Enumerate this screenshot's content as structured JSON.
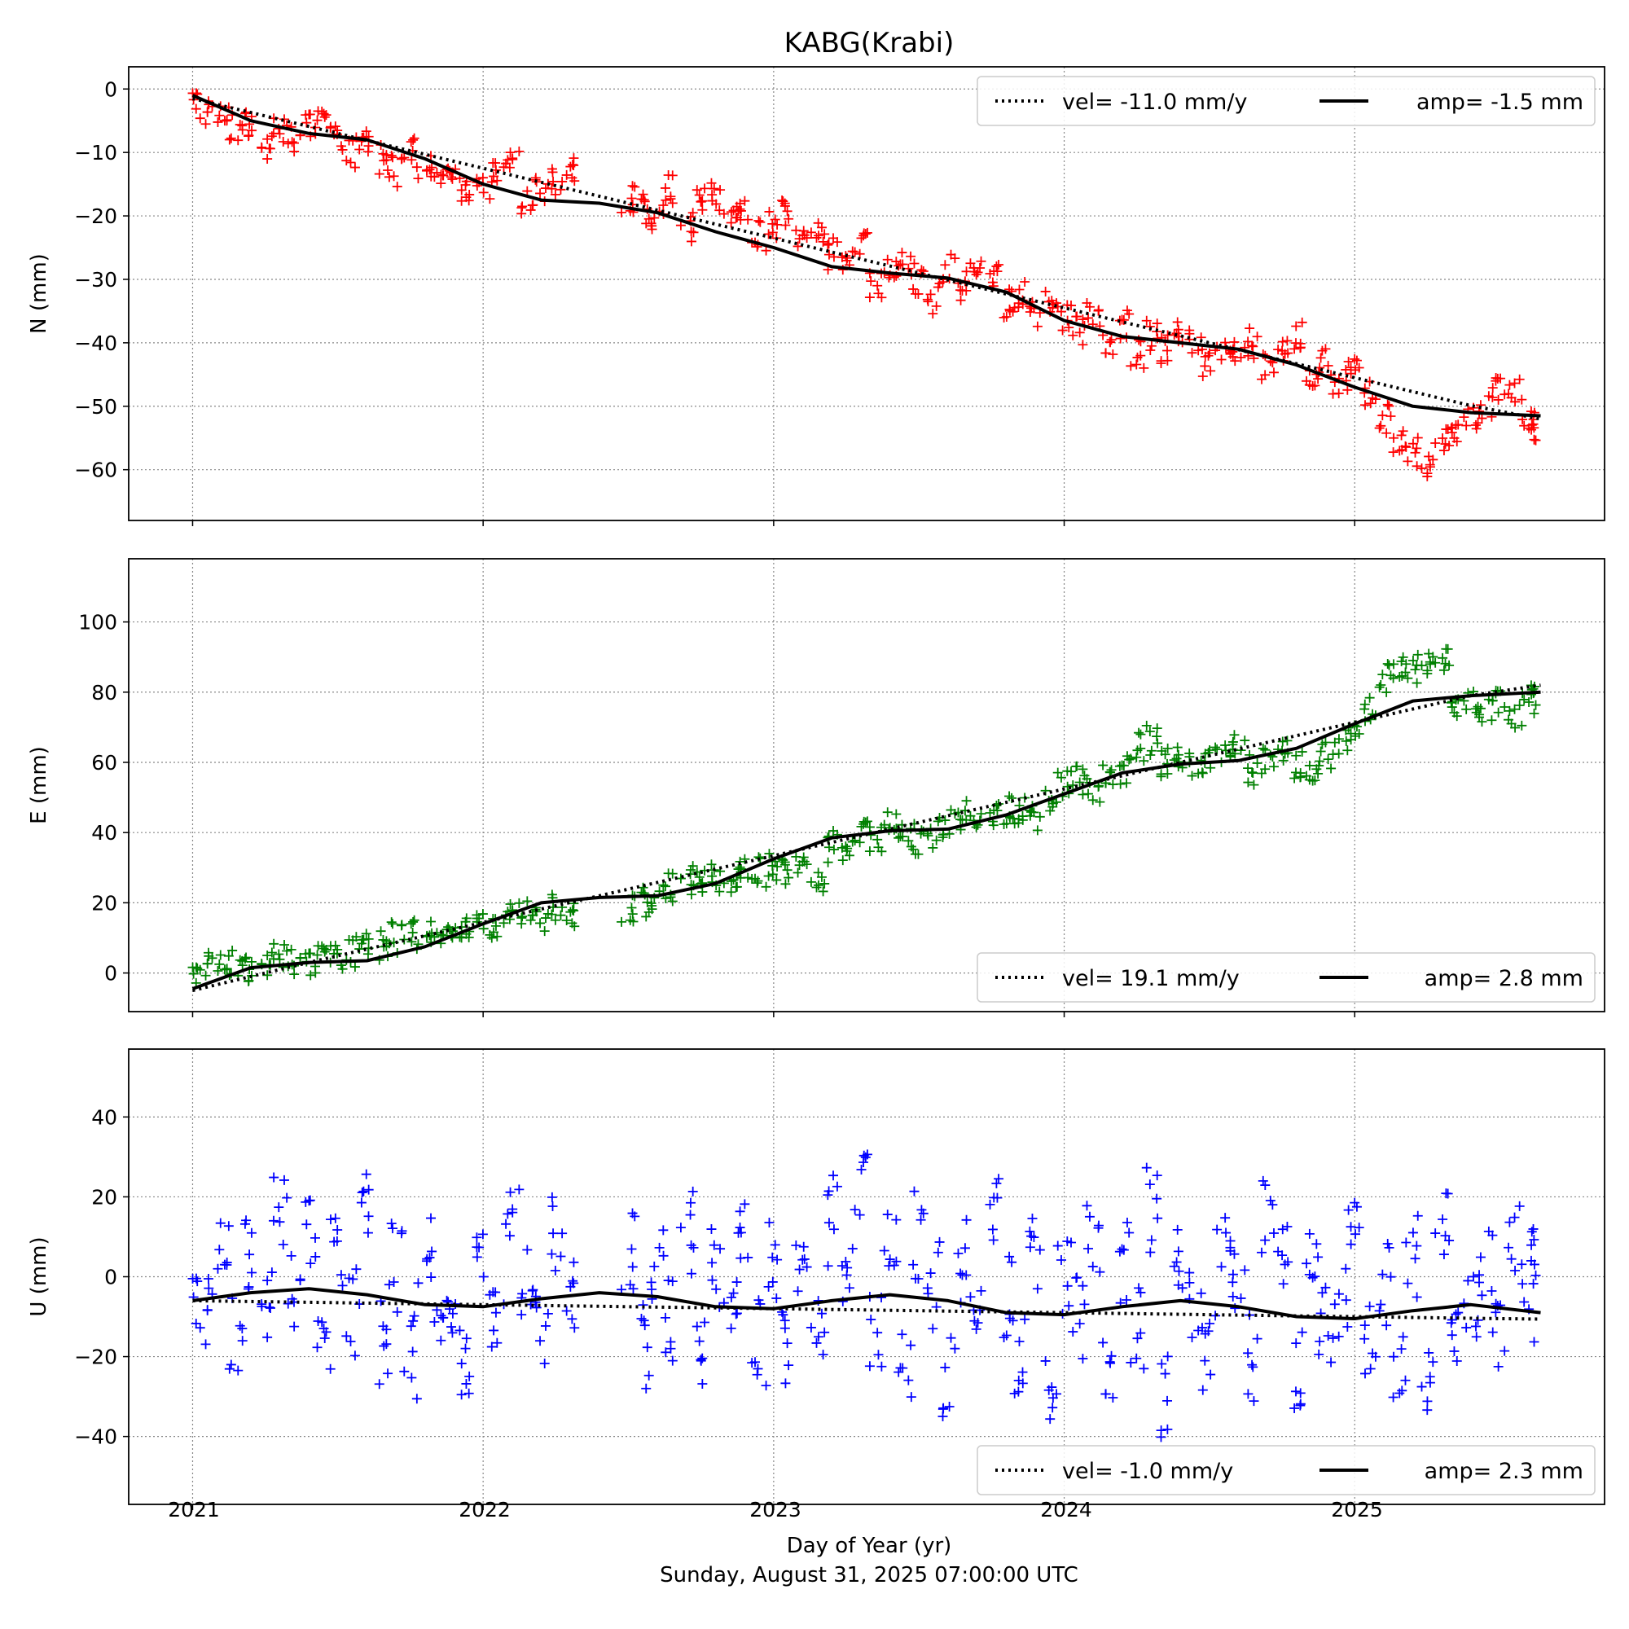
{
  "chart_data": {
    "type": "scatter",
    "title": "KABG(Krabi)",
    "xlabel": "Day of Year (yr)",
    "footer": "Sunday, August 31, 2025 07:00:00 UTC",
    "x_ticks": [
      "2021",
      "2022",
      "2023",
      "2024",
      "2025"
    ],
    "xlim": [
      2020.78,
      2025.86
    ],
    "t_start": 2021.0,
    "t_end": 2025.64,
    "grid": true,
    "panels": [
      {
        "component": "N",
        "ylabel": "N (mm)",
        "ylim": [
          -68,
          3.5
        ],
        "yticks": [
          0,
          -10,
          -20,
          -30,
          -40,
          -50,
          -60
        ],
        "ytick_labels": [
          "0",
          "−10",
          "−20",
          "−30",
          "−40",
          "−50",
          "−60"
        ],
        "marker_color": "#ff0000",
        "marker": "+",
        "velocity_mm_per_yr": -11.0,
        "annual_amplitude_mm": -1.5,
        "legend": {
          "position": "top-right",
          "vel_label": "vel= -11.0 mm/y",
          "amp_label": "amp= -1.5 mm"
        },
        "trend_line": {
          "t": [
            2021.0,
            2021.2,
            2021.4,
            2021.6,
            2021.8,
            2022.0,
            2022.2,
            2022.4,
            2022.6,
            2022.8,
            2023.0,
            2023.2,
            2023.4,
            2023.6,
            2023.8,
            2024.0,
            2024.2,
            2024.4,
            2024.6,
            2024.8,
            2025.0,
            2025.2,
            2025.4,
            2025.64
          ],
          "vel": [
            -1.5,
            -3.7,
            -5.9,
            -8.1,
            -10.3,
            -12.5,
            -14.7,
            -16.9,
            -19.1,
            -21.3,
            -23.5,
            -25.7,
            -27.9,
            -30.1,
            -32.3,
            -34.5,
            -36.7,
            -38.9,
            -41.1,
            -43.3,
            -45.5,
            -47.7,
            -49.9,
            -52.0
          ],
          "amp": [
            -1.0,
            -5.0,
            -7.0,
            -8.0,
            -11.0,
            -15.0,
            -17.5,
            -18.0,
            -19.5,
            -22.5,
            -25.0,
            -28.0,
            -29.0,
            -29.8,
            -32.0,
            -36.5,
            -39.0,
            -40.0,
            -41.0,
            -43.5,
            -47.0,
            -50.0,
            -51.0,
            -51.5
          ]
        },
        "observations": {
          "t": [
            2021.0,
            2021.05,
            2021.1,
            2021.15,
            2021.2,
            2021.25,
            2021.3,
            2021.35,
            2021.4,
            2021.45,
            2021.5,
            2021.55,
            2021.6,
            2021.65,
            2021.7,
            2021.75,
            2021.8,
            2021.85,
            2021.9,
            2021.95,
            2022.0,
            2022.05,
            2022.1,
            2022.15,
            2022.2,
            2022.25,
            2022.3,
            2022.5,
            2022.55,
            2022.6,
            2022.65,
            2022.7,
            2022.75,
            2022.8,
            2022.85,
            2022.9,
            2022.95,
            2023.0,
            2023.05,
            2023.1,
            2023.15,
            2023.2,
            2023.25,
            2023.3,
            2023.35,
            2023.4,
            2023.45,
            2023.5,
            2023.55,
            2023.6,
            2023.65,
            2023.7,
            2023.75,
            2023.8,
            2023.85,
            2023.9,
            2023.95,
            2024.0,
            2024.05,
            2024.1,
            2024.15,
            2024.2,
            2024.25,
            2024.3,
            2024.35,
            2024.4,
            2024.45,
            2024.5,
            2024.55,
            2024.6,
            2024.65,
            2024.7,
            2024.75,
            2024.8,
            2024.85,
            2024.9,
            2024.95,
            2025.0,
            2025.05,
            2025.1,
            2025.15,
            2025.2,
            2025.25,
            2025.3,
            2025.35,
            2025.4,
            2025.45,
            2025.5,
            2025.55,
            2025.6,
            2025.63
          ],
          "y": [
            -1,
            -4,
            -5,
            -6,
            -5,
            -9,
            -7,
            -8,
            -6,
            -5,
            -8,
            -10,
            -9,
            -11,
            -13,
            -10,
            -12,
            -14,
            -12,
            -16,
            -15,
            -13,
            -12,
            -18,
            -16,
            -15,
            -13,
            -17,
            -19,
            -20,
            -16,
            -22,
            -18,
            -17,
            -20,
            -19,
            -23,
            -21,
            -20,
            -24,
            -22,
            -26,
            -28,
            -25,
            -31,
            -29,
            -27,
            -30,
            -33,
            -28,
            -31,
            -29,
            -30,
            -34,
            -32,
            -35,
            -33,
            -36,
            -38,
            -35,
            -40,
            -37,
            -42,
            -39,
            -41,
            -38,
            -40,
            -43,
            -41,
            -42,
            -40,
            -44,
            -42,
            -39,
            -45,
            -43,
            -46,
            -44,
            -48,
            -52,
            -55,
            -57,
            -59,
            -56,
            -54,
            -52,
            -50,
            -48,
            -47,
            -53,
            -55
          ]
        }
      },
      {
        "component": "E",
        "ylabel": "E (mm)",
        "ylim": [
          -11,
          118
        ],
        "yticks": [
          0,
          20,
          40,
          60,
          80,
          100
        ],
        "ytick_labels": [
          "0",
          "20",
          "40",
          "60",
          "80",
          "100"
        ],
        "marker_color": "#008000",
        "marker": "+",
        "velocity_mm_per_yr": 19.1,
        "annual_amplitude_mm": 2.8,
        "legend": {
          "position": "bottom-right",
          "vel_label": "vel= 19.1 mm/y",
          "amp_label": "amp= 2.8 mm"
        },
        "trend_line": {
          "t": [
            2021.0,
            2021.2,
            2021.4,
            2021.6,
            2021.8,
            2022.0,
            2022.2,
            2022.4,
            2022.6,
            2022.8,
            2023.0,
            2023.2,
            2023.4,
            2023.6,
            2023.8,
            2024.0,
            2024.2,
            2024.4,
            2024.6,
            2024.8,
            2025.0,
            2025.2,
            2025.4,
            2025.64
          ],
          "vel": [
            -5.0,
            -1.0,
            3.0,
            6.8,
            10.6,
            14.4,
            18.2,
            22.0,
            25.8,
            29.6,
            33.4,
            37.2,
            41.0,
            44.8,
            48.6,
            52.4,
            56.2,
            60.0,
            63.8,
            67.6,
            71.4,
            75.2,
            79.0,
            82.0
          ],
          "amp": [
            -4.5,
            1.5,
            3.0,
            3.5,
            7.5,
            14.0,
            20.0,
            21.5,
            22.0,
            25.5,
            32.5,
            38.5,
            40.5,
            41.0,
            45.0,
            51.0,
            57.0,
            59.5,
            60.5,
            64.0,
            71.0,
            77.5,
            79.0,
            80.0
          ]
        },
        "observations": {
          "t": [
            2021.0,
            2021.05,
            2021.1,
            2021.15,
            2021.2,
            2021.25,
            2021.3,
            2021.35,
            2021.4,
            2021.45,
            2021.5,
            2021.55,
            2021.6,
            2021.65,
            2021.7,
            2021.75,
            2021.8,
            2021.85,
            2021.9,
            2021.95,
            2022.0,
            2022.05,
            2022.1,
            2022.15,
            2022.2,
            2022.25,
            2022.3,
            2022.5,
            2022.55,
            2022.6,
            2022.65,
            2022.7,
            2022.75,
            2022.8,
            2022.85,
            2022.9,
            2022.95,
            2023.0,
            2023.05,
            2023.1,
            2023.15,
            2023.2,
            2023.25,
            2023.3,
            2023.35,
            2023.4,
            2023.45,
            2023.5,
            2023.55,
            2023.6,
            2023.65,
            2023.7,
            2023.75,
            2023.8,
            2023.85,
            2023.9,
            2023.95,
            2024.0,
            2024.05,
            2024.1,
            2024.15,
            2024.2,
            2024.25,
            2024.3,
            2024.35,
            2024.4,
            2024.45,
            2024.5,
            2024.55,
            2024.6,
            2024.65,
            2024.7,
            2024.75,
            2024.8,
            2024.85,
            2024.9,
            2024.95,
            2025.0,
            2025.05,
            2025.1,
            2025.15,
            2025.2,
            2025.25,
            2025.3,
            2025.35,
            2025.4,
            2025.45,
            2025.5,
            2025.55,
            2025.6,
            2025.63
          ],
          "y": [
            1,
            2,
            1,
            3,
            2,
            3,
            4,
            3,
            2,
            5,
            4,
            6,
            7,
            8,
            10,
            11,
            12,
            10,
            14,
            13,
            15,
            13,
            16,
            17,
            15,
            18,
            16,
            19,
            20,
            22,
            24,
            26,
            25,
            27,
            25,
            30,
            29,
            31,
            28,
            30,
            27,
            36,
            33,
            39,
            38,
            42,
            40,
            38,
            40,
            43,
            45,
            42,
            44,
            46,
            47,
            45,
            50,
            54,
            55,
            53,
            57,
            58,
            64,
            66,
            60,
            62,
            59,
            61,
            63,
            64,
            58,
            60,
            62,
            59,
            58,
            62,
            66,
            68,
            75,
            84,
            88,
            87,
            89,
            88,
            76,
            77,
            75,
            76,
            74,
            78,
            77
          ]
        }
      },
      {
        "component": "U",
        "ylabel": "U (mm)",
        "ylim": [
          -57,
          57
        ],
        "yticks": [
          40,
          20,
          0,
          -20,
          -40
        ],
        "ytick_labels": [
          "40",
          "20",
          "0",
          "−20",
          "−40"
        ],
        "marker_color": "#0000ff",
        "marker": "+",
        "velocity_mm_per_yr": -1.0,
        "annual_amplitude_mm": 2.3,
        "legend": {
          "position": "bottom-right",
          "vel_label": "vel= -1.0 mm/y",
          "amp_label": "amp= 2.3 mm"
        },
        "trend_line": {
          "t": [
            2021.0,
            2021.2,
            2021.4,
            2021.6,
            2021.8,
            2022.0,
            2022.2,
            2022.4,
            2022.6,
            2022.8,
            2023.0,
            2023.2,
            2023.4,
            2023.6,
            2023.8,
            2024.0,
            2024.2,
            2024.4,
            2024.6,
            2024.8,
            2025.0,
            2025.2,
            2025.4,
            2025.64
          ],
          "vel": [
            -6.0,
            -6.2,
            -6.4,
            -6.6,
            -6.8,
            -7.0,
            -7.2,
            -7.4,
            -7.6,
            -7.8,
            -8.0,
            -8.2,
            -8.4,
            -8.6,
            -8.8,
            -9.0,
            -9.2,
            -9.4,
            -9.6,
            -9.8,
            -10.0,
            -10.2,
            -10.4,
            -10.6
          ],
          "amp": [
            -6.0,
            -4.0,
            -3.0,
            -4.5,
            -7.0,
            -7.5,
            -5.5,
            -4.0,
            -5.0,
            -7.5,
            -8.0,
            -6.0,
            -4.5,
            -6.0,
            -9.0,
            -9.5,
            -7.5,
            -6.0,
            -7.5,
            -10.0,
            -10.5,
            -8.5,
            -7.0,
            -9.0
          ]
        },
        "observations": {
          "t": [
            2021.0,
            2021.05,
            2021.1,
            2021.15,
            2021.2,
            2021.25,
            2021.3,
            2021.35,
            2021.4,
            2021.45,
            2021.5,
            2021.55,
            2021.6,
            2021.65,
            2021.7,
            2021.75,
            2021.8,
            2021.85,
            2021.9,
            2021.95,
            2022.0,
            2022.05,
            2022.1,
            2022.15,
            2022.2,
            2022.25,
            2022.3,
            2022.5,
            2022.55,
            2022.6,
            2022.65,
            2022.7,
            2022.75,
            2022.8,
            2022.85,
            2022.9,
            2022.95,
            2023.0,
            2023.05,
            2023.1,
            2023.15,
            2023.2,
            2023.25,
            2023.3,
            2023.35,
            2023.4,
            2023.45,
            2023.5,
            2023.55,
            2023.6,
            2023.65,
            2023.7,
            2023.75,
            2023.8,
            2023.85,
            2023.9,
            2023.95,
            2024.0,
            2024.05,
            2024.1,
            2024.15,
            2024.2,
            2024.25,
            2024.3,
            2024.35,
            2024.4,
            2024.45,
            2024.5,
            2024.55,
            2024.6,
            2024.65,
            2024.7,
            2024.75,
            2024.8,
            2024.85,
            2024.9,
            2024.95,
            2025.0,
            2025.05,
            2025.1,
            2025.15,
            2025.2,
            2025.25,
            2025.3,
            2025.35,
            2025.4,
            2025.45,
            2025.5,
            2025.55,
            2025.6,
            2025.63
          ],
          "y": [
            -2,
            -10,
            3,
            -14,
            8,
            -6,
            14,
            -4,
            10,
            -18,
            5,
            -9,
            15,
            -16,
            2,
            -20,
            8,
            -12,
            -4,
            -22,
            6,
            -10,
            12,
            -2,
            -14,
            9,
            -6,
            8,
            -18,
            4,
            -12,
            10,
            -22,
            2,
            -8,
            12,
            -16,
            6,
            -20,
            0,
            -10,
            14,
            -4,
            20,
            -14,
            6,
            -20,
            10,
            -2,
            -24,
            4,
            -12,
            14,
            -6,
            -18,
            8,
            -26,
            0,
            -10,
            12,
            -22,
            4,
            -14,
            16,
            -30,
            6,
            -8,
            -18,
            10,
            -4,
            -20,
            14,
            2,
            -24,
            8,
            -12,
            -6,
            12,
            -16,
            -2,
            -20,
            6,
            -24,
            10,
            -14,
            -8,
            4,
            -18,
            12,
            -6,
            2
          ]
        }
      }
    ]
  }
}
